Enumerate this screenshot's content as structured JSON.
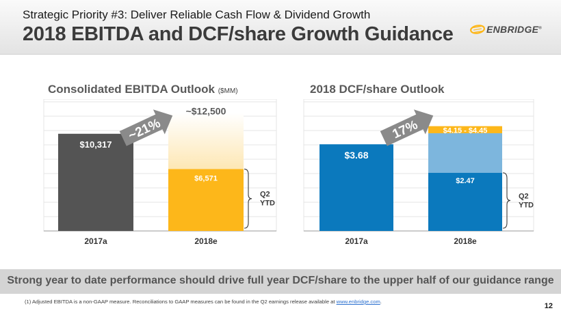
{
  "header": {
    "subtitle": "Strategic Priority #3: Deliver Reliable Cash Flow & Dividend Growth",
    "title": "2018 EBITDA and DCF/share Growth Guidance",
    "logo_text": "ENBRIDGE",
    "logo_mark": "®"
  },
  "chart_data": [
    {
      "type": "bar",
      "title": "Consolidated EBITDA Outlook",
      "units": "($MM)",
      "categories": [
        "2017a",
        "2018e"
      ],
      "ylim": [
        0,
        14000
      ],
      "series": [
        {
          "name": "2017a",
          "values": [
            10317,
            null
          ],
          "label": "$10,317"
        },
        {
          "name": "Q2 YTD",
          "values": [
            null,
            6571
          ],
          "label": "$6,571"
        },
        {
          "name": "Full-year outlook",
          "values": [
            null,
            12500
          ],
          "label": "~$12,500"
        }
      ],
      "growth_label": "~21%",
      "bracket_label": [
        "Q2",
        "YTD"
      ],
      "colors": {
        "y2017": "#545454",
        "ytd": "#fdb71a",
        "outlook": "#fde7b4"
      }
    },
    {
      "type": "bar",
      "title": "2018 DCF/share Outlook",
      "categories": [
        "2017a",
        "2018e"
      ],
      "ylim": [
        0,
        5.6
      ],
      "series": [
        {
          "name": "2017a",
          "values": [
            3.68,
            null
          ],
          "label": "$3.68"
        },
        {
          "name": "Q2 YTD",
          "values": [
            null,
            2.47
          ],
          "label": "$2.47"
        },
        {
          "name": "Guidance low",
          "values": [
            null,
            4.15
          ]
        },
        {
          "name": "Guidance range",
          "values": [
            null,
            [
              4.15,
              4.45
            ]
          ],
          "label": "$4.15 - $4.45"
        }
      ],
      "growth_label": "17%",
      "bracket_label": [
        "Q2",
        "YTD"
      ],
      "colors": {
        "bar": "#0b79bd",
        "guidance": "#7db6dd",
        "range": "#fdb71a"
      }
    }
  ],
  "banner": "Strong year to date performance should drive full year DCF/share to the upper half of our guidance range",
  "footnote": {
    "text": "(1)   Adjusted EBITDA is a non-GAAP measure. Reconciliations to GAAP measures can be found in the Q2 earnings release available at",
    "link": "www.enbridge.com",
    "end": "."
  },
  "page_number": "12"
}
